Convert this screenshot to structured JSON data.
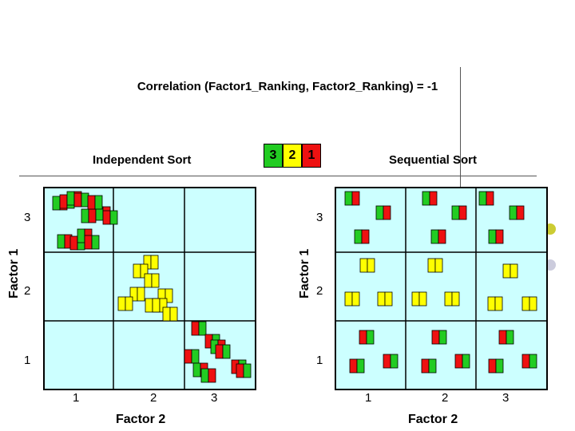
{
  "title": "Correlation (Factor1_Ranking, Factor2_Ranking) = -1",
  "legend": [
    {
      "label": "3",
      "color": "#22cc22"
    },
    {
      "label": "2",
      "color": "#ffff00"
    },
    {
      "label": "1",
      "color": "#ee1111"
    }
  ],
  "colors": {
    "panel_bg": "#ccffff",
    "grid": "#000000",
    "green": "#22cc22",
    "yellow": "#ffff00",
    "red": "#ee1111",
    "dot_yellow": "#cccc33",
    "dot_lavender": "#ccccdd"
  },
  "left_panel": {
    "heading": "Independent Sort",
    "y_label": "Factor 1",
    "x_label": "Factor 2",
    "y_ticks": [
      "3",
      "2",
      "1"
    ],
    "x_ticks": [
      "1",
      "2",
      "3"
    ]
  },
  "right_panel": {
    "heading": "Sequential Sort",
    "y_label": "Factor 1",
    "x_label": "Factor 2",
    "y_ticks": [
      "3",
      "2",
      "1"
    ],
    "x_ticks": [
      "1",
      "2",
      "3"
    ]
  }
}
